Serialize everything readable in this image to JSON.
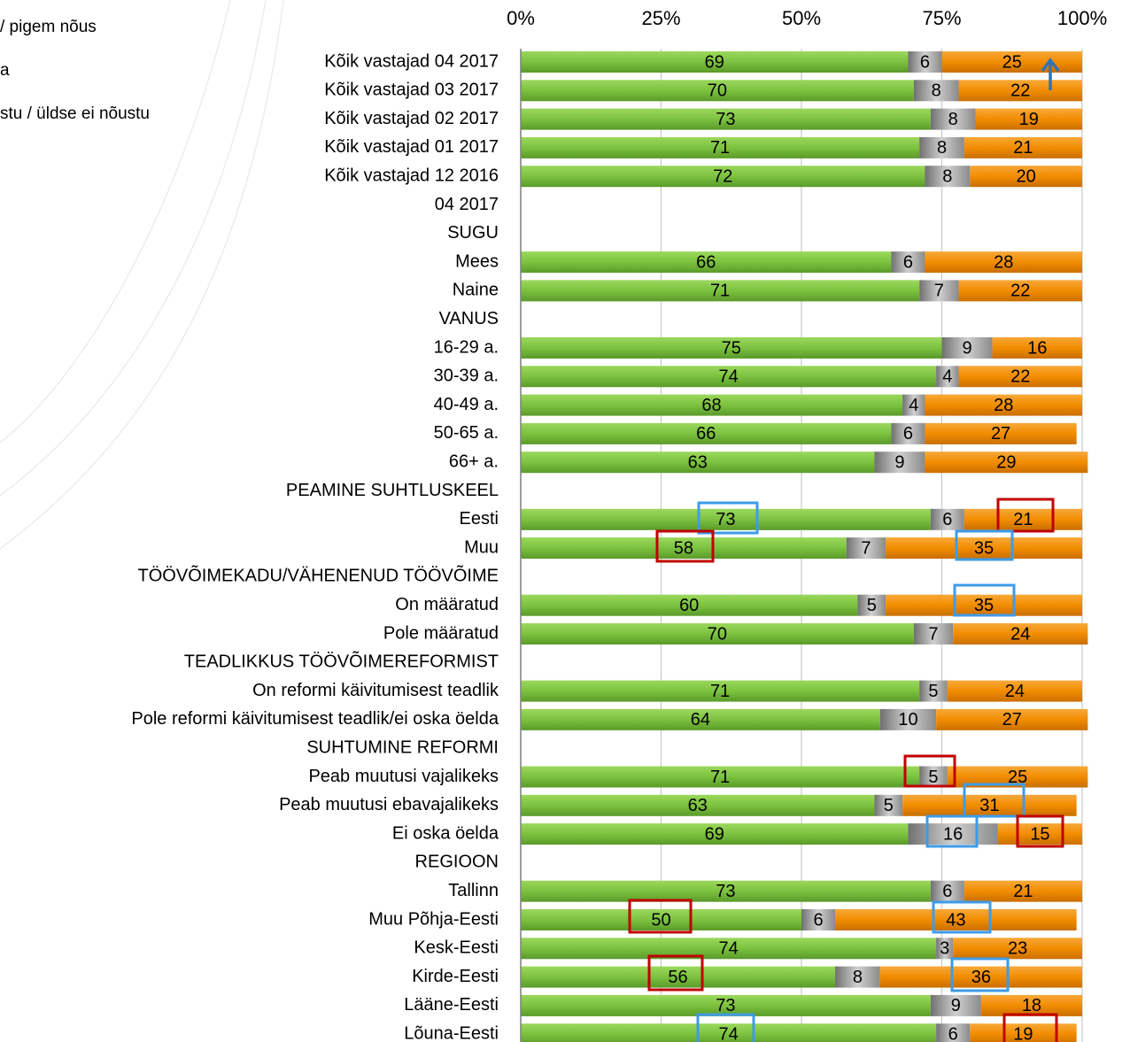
{
  "chart_data": {
    "type": "stacked-bar-horizontal",
    "categories": [
      "Kõik vastajad 04 2017",
      "Kõik vastajad 03 2017",
      "Kõik vastajad 02 2017",
      "Kõik vastajad 01 2017",
      "Kõik vastajad 12 2016",
      "04 2017",
      "SUGU",
      "Mees",
      "Naine",
      "VANUS",
      "16-29 a.",
      "30-39 a.",
      "40-49 a.",
      "50-65 a.",
      "66+ a.",
      "PEAMINE SUHTLUSKEEL",
      "Eesti",
      "Muu",
      "TÖÖVÕIMEKADU/VÄHENENUD TÖÖVÕIME",
      "On määratud",
      "Pole määratud",
      "TEADLIKKUS TÖÖVÕIMEREFORMIST",
      "On reformi käivitumisest teadlik",
      "Pole reformi käivitumisest teadlik/ei oska öelda",
      "SUHTUMINE REFORMI",
      "Peab muutusi vajalikeks",
      "Peab muutusi ebavajalikeks",
      "Ei oska öelda",
      "REGIOON",
      "Tallinn",
      "Muu Põhja-Eesti",
      "Kesk-Eesti",
      "Kirde-Eesti",
      "Lääne-Eesti",
      "Lõuna-Eesti"
    ],
    "series": [
      {
        "name": "/ pigem nõus",
        "color": "#7cc23f",
        "values": [
          69,
          70,
          73,
          71,
          72,
          null,
          null,
          66,
          71,
          null,
          75,
          74,
          68,
          66,
          63,
          null,
          73,
          58,
          null,
          60,
          70,
          null,
          71,
          64,
          null,
          71,
          63,
          69,
          null,
          73,
          50,
          74,
          56,
          73,
          74
        ]
      },
      {
        "name": "a",
        "color": "#a6a6a6",
        "values": [
          6,
          8,
          8,
          8,
          8,
          null,
          null,
          6,
          7,
          null,
          9,
          4,
          4,
          6,
          9,
          null,
          6,
          7,
          null,
          5,
          7,
          null,
          5,
          10,
          null,
          5,
          5,
          16,
          null,
          6,
          6,
          3,
          8,
          9,
          6
        ]
      },
      {
        "name": "stu / üldse ei nõustu",
        "color": "#f28c00",
        "values": [
          25,
          22,
          19,
          21,
          20,
          null,
          null,
          28,
          22,
          null,
          16,
          22,
          28,
          27,
          29,
          null,
          21,
          35,
          null,
          35,
          24,
          null,
          24,
          27,
          null,
          25,
          31,
          15,
          null,
          21,
          43,
          23,
          36,
          18,
          19
        ]
      }
    ],
    "xlim": [
      0,
      100
    ],
    "xticks": [
      {
        "value": 0,
        "label": "0%"
      },
      {
        "value": 25,
        "label": "25%"
      },
      {
        "value": 50,
        "label": "50%"
      },
      {
        "value": 75,
        "label": "75%"
      },
      {
        "value": 100,
        "label": "100%"
      }
    ],
    "grid": true
  }
}
